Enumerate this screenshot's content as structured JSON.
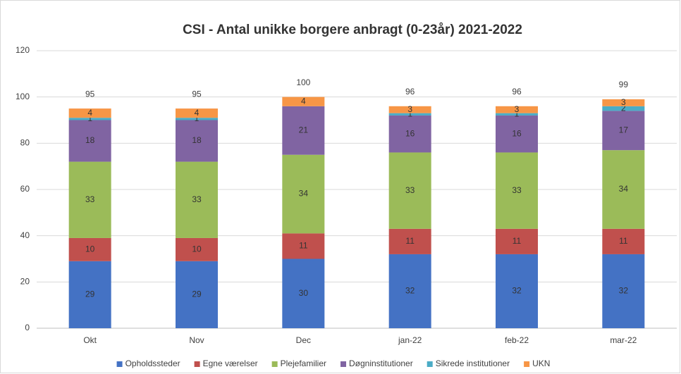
{
  "chart_data": {
    "type": "stacked_bar",
    "title": "CSI - Antal unikke borgere anbragt (0-23år) 2021-2022",
    "categories": [
      "Okt",
      "Nov",
      "Dec",
      "jan-22",
      "feb-22",
      "mar-22"
    ],
    "series": [
      {
        "name": "Opholdssteder",
        "color": "#4472c4",
        "values": [
          29,
          29,
          30,
          32,
          32,
          32
        ]
      },
      {
        "name": "Egne værelser",
        "color": "#c0504d",
        "values": [
          10,
          10,
          11,
          11,
          11,
          11
        ]
      },
      {
        "name": "Plejefamilier",
        "color": "#9bbb59",
        "values": [
          33,
          33,
          34,
          33,
          33,
          34
        ]
      },
      {
        "name": "Døgninstitutioner",
        "color": "#8064a2",
        "values": [
          18,
          18,
          21,
          16,
          16,
          17
        ]
      },
      {
        "name": "Sikrede institutioner",
        "color": "#4bacc6",
        "values": [
          1,
          1,
          null,
          1,
          1,
          2
        ]
      },
      {
        "name": "UKN",
        "color": "#f79646",
        "values": [
          4,
          4,
          4,
          3,
          3,
          3
        ]
      }
    ],
    "totals": [
      95,
      95,
      100,
      96,
      96,
      99
    ],
    "ylim": [
      0,
      120
    ],
    "yticks": [
      0,
      20,
      40,
      60,
      80,
      100,
      120
    ],
    "grid": true,
    "legend": "bottom"
  }
}
